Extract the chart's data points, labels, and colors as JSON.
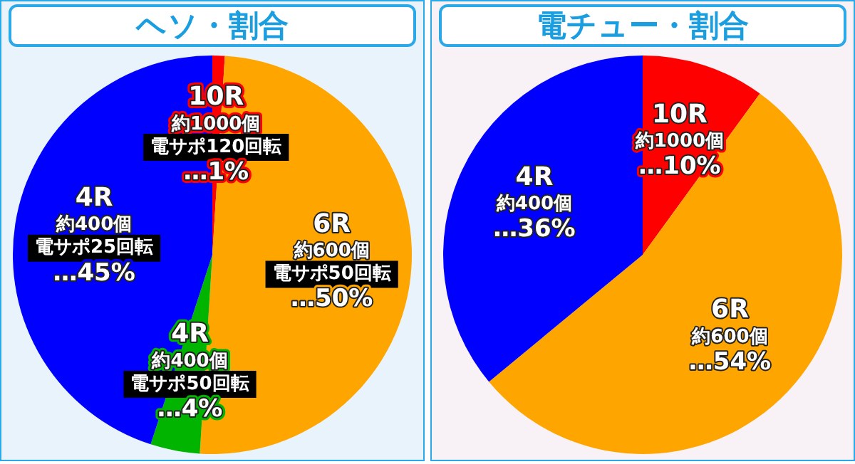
{
  "chart_data": [
    {
      "type": "pie",
      "title": "ヘソ・割合",
      "categories": [
        "10R約1000個電サポ120回転",
        "6R約600個電サポ50回転",
        "4R約400個電サポ50回転",
        "4R約400個電サポ25回転"
      ],
      "values": [
        1,
        50,
        4,
        45
      ],
      "colors": [
        "#ff0000",
        "#ffa500",
        "#00b400",
        "#0000ff"
      ],
      "value_labels": [
        "…1%",
        "…50%",
        "…4%",
        "…45%"
      ]
    },
    {
      "type": "pie",
      "title": "電チュー・割合",
      "categories": [
        "10R約1000個",
        "6R約600個",
        "4R約400個"
      ],
      "values": [
        10,
        54,
        36
      ],
      "colors": [
        "#ff0000",
        "#ffa500",
        "#0000ff"
      ],
      "value_labels": [
        "…10%",
        "…54%",
        "…36%"
      ]
    }
  ]
}
